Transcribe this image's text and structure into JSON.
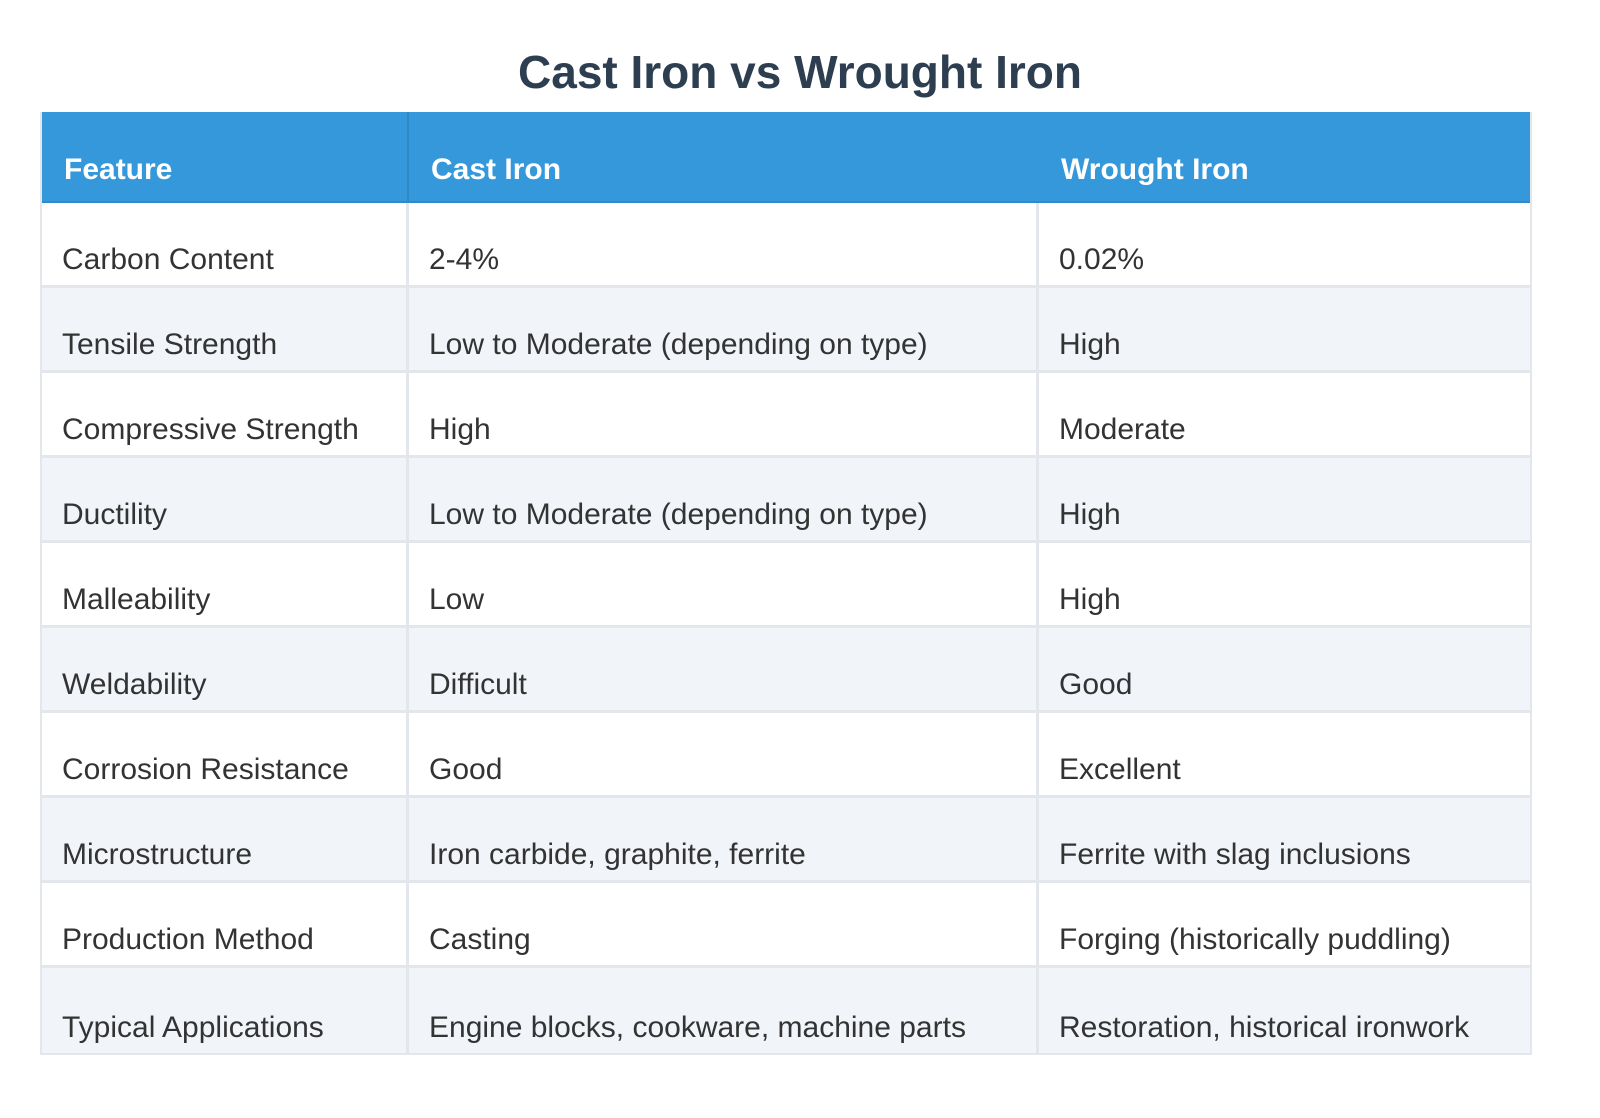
{
  "title": "Cast Iron vs Wrought Iron",
  "colors": {
    "header_bg": "#3598db",
    "title_text": "#2c3e50",
    "stripe_bg": "#f1f4f9"
  },
  "table": {
    "headers": [
      "Feature",
      "Cast Iron",
      "Wrought Iron"
    ],
    "rows": [
      [
        "Carbon Content",
        "2-4%",
        "0.02%"
      ],
      [
        "Tensile Strength",
        "Low to Moderate (depending on type)",
        "High"
      ],
      [
        "Compressive Strength",
        "High",
        "Moderate"
      ],
      [
        "Ductility",
        "Low to Moderate (depending on type)",
        "High"
      ],
      [
        "Malleability",
        "Low",
        "High"
      ],
      [
        "Weldability",
        "Difficult",
        "Good"
      ],
      [
        "Corrosion Resistance",
        "Good",
        "Excellent"
      ],
      [
        "Microstructure",
        "Iron carbide, graphite, ferrite",
        "Ferrite with slag inclusions"
      ],
      [
        "Production Method",
        "Casting",
        "Forging (historically puddling)"
      ],
      [
        "Typical Applications",
        "Engine blocks, cookware, machine parts",
        "Restoration, historical ironwork"
      ]
    ]
  }
}
